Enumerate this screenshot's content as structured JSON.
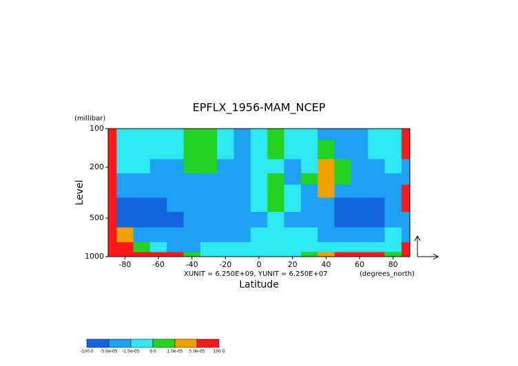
{
  "chart_data": {
    "type": "contour",
    "title": "EPFLX_1956-MAM_NCEP",
    "y_unit": "(millibar)",
    "y_label": "Level",
    "x_label": "Latitude",
    "x_unit": "(degrees_north)",
    "annotation": "XUNIT = 6.250E+09, YUNIT = 6.250E+07",
    "xlim": [
      -90,
      90
    ],
    "ylim": [
      1000,
      100
    ],
    "log_y": true,
    "xticks": [
      -80,
      -60,
      -40,
      -20,
      0,
      20,
      40,
      60,
      80
    ],
    "yticks": [
      100,
      200,
      500,
      1000
    ],
    "x": [
      -90,
      -80,
      -70,
      -60,
      -50,
      -40,
      -30,
      -20,
      -10,
      0,
      10,
      20,
      30,
      40,
      50,
      60,
      70,
      80,
      90
    ],
    "levels": [
      100,
      150,
      200,
      250,
      300,
      400,
      500,
      700,
      850,
      1000
    ],
    "z": [
      [
        7e-05,
        -5e-06,
        -5e-06,
        -5e-06,
        -5e-06,
        5e-06,
        5e-06,
        -5e-06,
        -3e-05,
        -5e-06,
        5e-06,
        -5e-06,
        -5e-06,
        -3e-05,
        -3e-05,
        -3e-05,
        -5e-06,
        -5e-06,
        7e-05
      ],
      [
        7e-05,
        -5e-06,
        -5e-06,
        -5e-06,
        -5e-06,
        5e-06,
        5e-06,
        -5e-06,
        -3e-05,
        -5e-06,
        5e-06,
        -5e-06,
        -5e-06,
        5e-06,
        -3e-05,
        -3e-05,
        -5e-06,
        -5e-06,
        7e-05
      ],
      [
        7e-05,
        -5e-06,
        -5e-06,
        -3e-05,
        -3e-05,
        5e-06,
        5e-06,
        -3e-05,
        -3e-05,
        -5e-06,
        -5e-06,
        -3e-05,
        -5e-06,
        3e-05,
        5e-06,
        -3e-05,
        -3e-05,
        -5e-06,
        -3e-05
      ],
      [
        7e-05,
        -3e-05,
        -3e-05,
        -3e-05,
        -3e-05,
        -3e-05,
        -3e-05,
        -3e-05,
        -3e-05,
        -5e-06,
        5e-06,
        -3e-05,
        5e-06,
        3e-05,
        5e-06,
        -3e-05,
        -3e-05,
        -3e-05,
        -3e-05
      ],
      [
        7e-05,
        -3e-05,
        -3e-05,
        -3e-05,
        -3e-05,
        -3e-05,
        -3e-05,
        -3e-05,
        -3e-05,
        -5e-06,
        5e-06,
        -5e-06,
        -3e-05,
        3e-05,
        -3e-05,
        -3e-05,
        -3e-05,
        -3e-05,
        7e-05
      ],
      [
        7e-05,
        -7e-05,
        -7e-05,
        -7e-05,
        -3e-05,
        -3e-05,
        -3e-05,
        -3e-05,
        -3e-05,
        -5e-06,
        5e-06,
        -5e-06,
        -3e-05,
        -3e-05,
        -7e-05,
        -7e-05,
        -7e-05,
        -3e-05,
        7e-05
      ],
      [
        7e-05,
        -7e-05,
        -7e-05,
        -7e-05,
        -7e-05,
        -3e-05,
        -3e-05,
        -3e-05,
        -3e-05,
        -3e-05,
        -5e-06,
        -3e-05,
        -3e-05,
        -3e-05,
        -7e-05,
        -7e-05,
        -7e-05,
        -3e-05,
        -3e-05
      ],
      [
        7e-05,
        3e-05,
        -3e-05,
        -3e-05,
        -3e-05,
        -3e-05,
        -3e-05,
        -3e-05,
        -3e-05,
        -5e-06,
        -5e-06,
        -5e-06,
        -5e-06,
        -3e-05,
        -3e-05,
        -3e-05,
        -3e-05,
        -5e-06,
        -3e-05
      ],
      [
        7e-05,
        7e-05,
        5e-06,
        -5e-06,
        -3e-05,
        -3e-05,
        -5e-06,
        -5e-06,
        -5e-06,
        -5e-06,
        -5e-06,
        -5e-06,
        -5e-06,
        -5e-06,
        -5e-06,
        -5e-06,
        -5e-06,
        -5e-06,
        7e-05
      ],
      [
        7e-05,
        7e-05,
        7e-05,
        7e-05,
        7e-05,
        5e-06,
        -5e-06,
        -5e-06,
        -5e-06,
        -5e-06,
        -5e-06,
        -5e-06,
        5e-06,
        3e-05,
        7e-05,
        7e-05,
        7e-05,
        5e-06,
        7e-05
      ]
    ],
    "colorbar": {
      "ticks": [
        {
          "value": -100,
          "label": "-100.0"
        },
        {
          "value": -5e-05,
          "label": "-5.0e-05"
        },
        {
          "value": -1e-05,
          "label": "-1.0e-05"
        },
        {
          "value": 0,
          "label": "0.0"
        },
        {
          "value": 1e-05,
          "label": "1.0e-05"
        },
        {
          "value": 5e-05,
          "label": "5.0e-05"
        },
        {
          "value": 100,
          "label": "100.0"
        }
      ],
      "colors": [
        "#1464dc",
        "#1ea0f5",
        "#2ee8f2",
        "#24d224",
        "#f0a000",
        "#ff1818"
      ]
    }
  }
}
